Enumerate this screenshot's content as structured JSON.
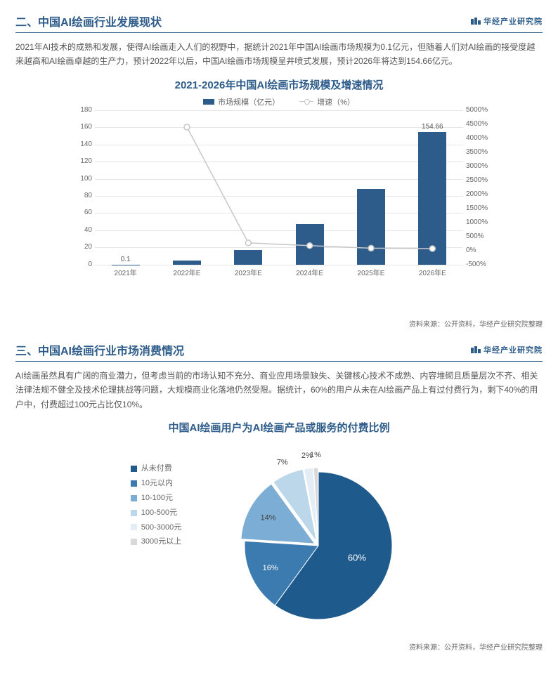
{
  "brand": "华经产业研究院",
  "section1": {
    "title": "二、中国AI绘画行业发展现状",
    "para": "2021年AI技术的成熟和发展，使得AI绘画走入人们的视野中，据统计2021年中国AI绘画市场规模为0.1亿元，但随着人们对AI绘画的接受度越来越高和AI绘画卓越的生产力，预计2022年以后，中国AI绘画市场规模呈井喷式发展，预计2026年将达到154.66亿元。"
  },
  "chart1": {
    "type": "bar+line",
    "title": "2021-2026年中国AI绘画市场规模及增速情况",
    "legend_bar": "市场规模（亿元）",
    "legend_line": "增速（%）",
    "categories": [
      "2021年",
      "2022年E",
      "2023年E",
      "2024年E",
      "2025年E",
      "2026年E"
    ],
    "bar_values": [
      0.1,
      4.5,
      17,
      47,
      88,
      154.66
    ],
    "bar_labels_top": [
      "0.1",
      "",
      "",
      "",
      "",
      "154.66"
    ],
    "line_values_pct": [
      null,
      4400,
      280,
      180,
      90,
      75
    ],
    "y_left": {
      "min": 0,
      "max": 180,
      "step": 20
    },
    "y_right": {
      "min": -500,
      "max": 5000,
      "step": 500,
      "suffix": "%"
    },
    "bar_color": "#2e5c8a",
    "line_color": "#c7c7c7",
    "grid_color": "#e6e6e6",
    "background_color": "#ffffff",
    "source": "资料来源：公开资料，华经产业研究院整理"
  },
  "section2": {
    "title": "三、中国AI绘画行业市场消费情况",
    "para": "AI绘画虽然具有广阔的商业潜力，但考虑当前的市场认知不充分、商业应用场景缺失、关键核心技术不成熟、内容堆砌且质量层次不齐、相关法律法规不健全及技术伦理挑战等问题，大规模商业化落地仍然受限。据统计，60%的用户从未在AI绘画产品上有过付费行为，剩下40%的用户中，付费超过100元占比仅10%。"
  },
  "chart2": {
    "type": "pie",
    "title": "中国AI绘画用户为AI绘画产品或服务的付费比例",
    "segments": [
      {
        "label": "从未付费",
        "value": 60,
        "text": "60%",
        "color": "#1f5a8c"
      },
      {
        "label": "10元以内",
        "value": 16,
        "text": "16%",
        "color": "#3b7bb0"
      },
      {
        "label": "10-100元",
        "value": 14,
        "text": "14%",
        "color": "#7cadd4"
      },
      {
        "label": "100-500元",
        "value": 7,
        "text": "7%",
        "color": "#bcd6ea"
      },
      {
        "label": "500-3000元",
        "value": 2,
        "text": "2%",
        "color": "#e4edf5"
      },
      {
        "label": "3000元以上",
        "value": 1,
        "text": "1%",
        "color": "#d9d9d9"
      }
    ],
    "source": "资料来源：公开资料，华经产业研究院整理"
  }
}
